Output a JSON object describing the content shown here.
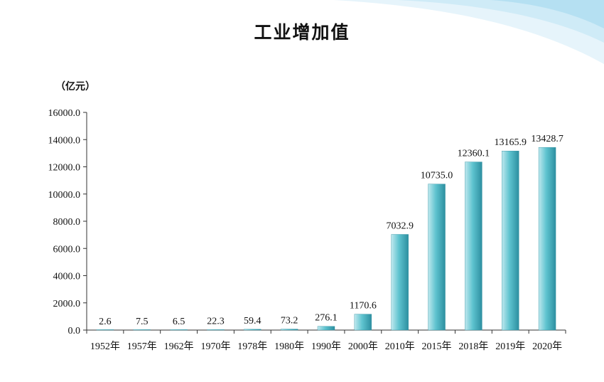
{
  "colors": {
    "bar_light": "#bfe8ee",
    "bar_mid": "#5ec3cf",
    "bar_dark": "#2d8fa0",
    "axis": "#333333",
    "decor": "#a9dcef"
  },
  "chart_data": {
    "type": "bar",
    "title": "工业增加值",
    "unit": "（亿元）",
    "categories": [
      "1952年",
      "1957年",
      "1962年",
      "1970年",
      "1978年",
      "1980年",
      "1990年",
      "2000年",
      "2010年",
      "2015年",
      "2018年",
      "2019年",
      "2020年"
    ],
    "values": [
      2.6,
      7.5,
      6.5,
      22.3,
      59.4,
      73.2,
      276.1,
      1170.6,
      7032.9,
      10735.0,
      12360.1,
      13165.9,
      13428.7
    ],
    "value_labels": [
      "2.6",
      "7.5",
      "6.5",
      "22.3",
      "59.4",
      "73.2",
      "276.1",
      "1170.6",
      "7032.9",
      "10735.0",
      "12360.1",
      "13165.9",
      "13428.7"
    ],
    "yticks": [
      "0.0",
      "2000.0",
      "4000.0",
      "6000.0",
      "8000.0",
      "10000.0",
      "12000.0",
      "14000.0",
      "16000.0"
    ],
    "ylim": [
      0,
      16000
    ],
    "grid": false,
    "legend": "none"
  }
}
